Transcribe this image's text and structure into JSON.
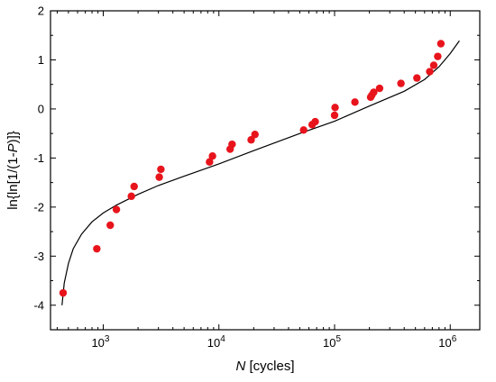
{
  "chart_data": {
    "type": "scatter",
    "title": "",
    "xlabel_italic": "N",
    "xlabel_rest": " [cycles]",
    "ylabel_prefix": "ln{ln[1/(1-",
    "ylabel_italic": "P",
    "ylabel_suffix": ")]}",
    "x_scale": "log",
    "xlim": [
      350,
      1800000
    ],
    "ylim": [
      -4.5,
      2
    ],
    "y_ticks": [
      2,
      1,
      0,
      -1,
      -2,
      -3,
      -4
    ],
    "y_tick_labels": [
      "2",
      "1",
      "0",
      "-1",
      "-2",
      "-3",
      "-4"
    ],
    "x_ticks": [
      1000,
      10000,
      100000,
      1000000
    ],
    "x_tick_labels": [
      {
        "base": "10",
        "exp": "3"
      },
      {
        "base": "10",
        "exp": "4"
      },
      {
        "base": "10",
        "exp": "5"
      },
      {
        "base": "10",
        "exp": "6"
      }
    ],
    "grid": false,
    "point_color": "#e8141c",
    "line_color": "#000000",
    "series": [
      {
        "kind": "points",
        "x": [
          450,
          880,
          1150,
          1300,
          1750,
          1850,
          3050,
          3150,
          8300,
          8800,
          12500,
          13000,
          19000,
          20500,
          54000,
          64000,
          68000,
          100000,
          101000,
          150000,
          205000,
          210000,
          218000,
          245000,
          375000,
          515000,
          665000,
          720000,
          780000,
          830000
        ],
        "y": [
          -3.75,
          -2.85,
          -2.37,
          -2.05,
          -1.78,
          -1.58,
          -1.39,
          -1.23,
          -1.08,
          -0.96,
          -0.82,
          -0.72,
          -0.63,
          -0.52,
          -0.43,
          -0.32,
          -0.26,
          -0.13,
          0.03,
          0.14,
          0.24,
          0.28,
          0.34,
          0.42,
          0.52,
          0.63,
          0.76,
          0.89,
          1.07,
          1.33
        ]
      },
      {
        "kind": "line",
        "x": [
          440,
          460,
          500,
          550,
          650,
          800,
          1000,
          1300,
          2000,
          3000,
          5000,
          10000,
          20000,
          50000,
          100000,
          200000,
          400000,
          600000,
          800000,
          1000000,
          1200000
        ],
        "y": [
          -4.0,
          -3.55,
          -3.15,
          -2.85,
          -2.55,
          -2.3,
          -2.12,
          -1.96,
          -1.74,
          -1.56,
          -1.37,
          -1.12,
          -0.85,
          -0.5,
          -0.25,
          0.06,
          0.36,
          0.6,
          0.86,
          1.13,
          1.39
        ]
      }
    ]
  }
}
